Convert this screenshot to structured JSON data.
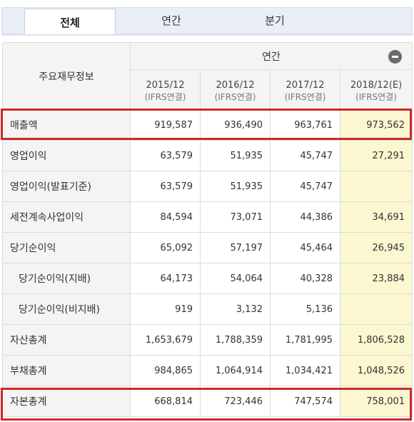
{
  "tabs": [
    {
      "label": "전체",
      "active": true
    },
    {
      "label": "연간",
      "active": false
    },
    {
      "label": "분기",
      "active": false
    }
  ],
  "table": {
    "row_header": "주요재무정보",
    "group_header": "연간",
    "columns": [
      {
        "period": "2015/12",
        "basis": "(IFRS연결)",
        "estimate": false
      },
      {
        "period": "2016/12",
        "basis": "(IFRS연결)",
        "estimate": false
      },
      {
        "period": "2017/12",
        "basis": "(IFRS연결)",
        "estimate": false
      },
      {
        "period": "2018/12(E)",
        "basis": "(IFRS연결)",
        "estimate": true
      }
    ],
    "rows": [
      {
        "label": "매출액",
        "values": [
          "919,587",
          "936,490",
          "963,761",
          "973,562"
        ],
        "highlight": true
      },
      {
        "label": "영업이익",
        "values": [
          "63,579",
          "51,935",
          "45,747",
          "27,291"
        ]
      },
      {
        "label": "영업이익(발표기준)",
        "values": [
          "63,579",
          "51,935",
          "45,747",
          ""
        ]
      },
      {
        "label": "세전계속사업이익",
        "values": [
          "84,594",
          "73,071",
          "44,386",
          "34,691"
        ]
      },
      {
        "label": "당기순이익",
        "values": [
          "65,092",
          "57,197",
          "45,464",
          "26,945"
        ]
      },
      {
        "label": "당기순이익(지배)",
        "values": [
          "64,173",
          "54,064",
          "40,328",
          "23,884"
        ],
        "indent": true
      },
      {
        "label": "당기순이익(비지배)",
        "values": [
          "919",
          "3,132",
          "5,136",
          ""
        ],
        "indent": true
      },
      {
        "label": "자산총계",
        "values": [
          "1,653,679",
          "1,788,359",
          "1,781,995",
          "1,806,528"
        ]
      },
      {
        "label": "부채총계",
        "values": [
          "984,865",
          "1,064,914",
          "1,034,421",
          "1,048,526"
        ]
      },
      {
        "label": "자본총계",
        "values": [
          "668,814",
          "723,446",
          "747,574",
          "758,001"
        ],
        "highlight": true
      }
    ]
  },
  "colors": {
    "highlight_border": "#cc2a2a",
    "estimate_bg": "#fbf7d0",
    "header_bg": "#f4f4f4",
    "tab_bg": "#e9eef7"
  },
  "icons": {
    "collapse": "minus-circle-icon"
  }
}
